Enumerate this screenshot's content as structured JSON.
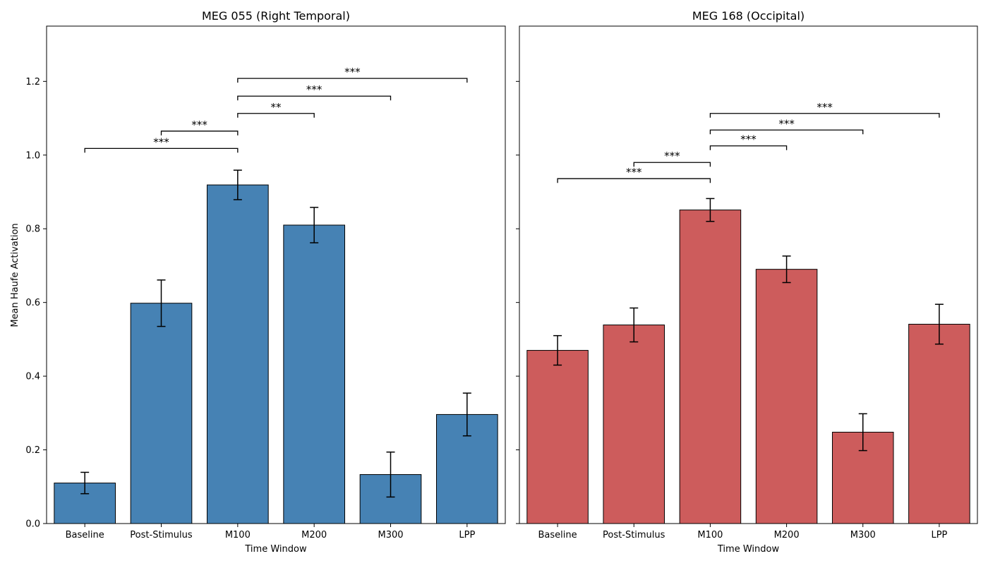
{
  "figure": {
    "ylabel": "Mean Haufe Activation"
  },
  "chart_data": [
    {
      "type": "bar",
      "title": "MEG 055 (Right Temporal)",
      "xlabel": "Time Window",
      "ylabel": "Mean Haufe Activation",
      "categories": [
        "Baseline",
        "Post-Stimulus",
        "M100",
        "M200",
        "M300",
        "LPP"
      ],
      "values": [
        0.11,
        0.598,
        0.919,
        0.81,
        0.133,
        0.296
      ],
      "errors": [
        0.029,
        0.063,
        0.04,
        0.048,
        0.061,
        0.058
      ],
      "bar_color": "#4682b4",
      "edge_color": "#000000",
      "ylim": [
        0,
        1.35
      ],
      "yticks": [
        0.0,
        0.2,
        0.4,
        0.6,
        0.8,
        1.0,
        1.2
      ],
      "ytick_labels": [
        "0.0",
        "0.2",
        "0.4",
        "0.6",
        "0.8",
        "1.0",
        "1.2"
      ],
      "significance": [
        {
          "from": "Baseline",
          "to": "M100",
          "y": 1.018,
          "label": "***"
        },
        {
          "from": "Post-Stimulus",
          "to": "M100",
          "y": 1.065,
          "label": "***"
        },
        {
          "from": "M100",
          "to": "M200",
          "y": 1.113,
          "label": "**"
        },
        {
          "from": "M100",
          "to": "M300",
          "y": 1.16,
          "label": "***"
        },
        {
          "from": "M100",
          "to": "LPP",
          "y": 1.208,
          "label": "***"
        }
      ]
    },
    {
      "type": "bar",
      "title": "MEG 168 (Occipital)",
      "xlabel": "Time Window",
      "ylabel": "",
      "categories": [
        "Baseline",
        "Post-Stimulus",
        "M100",
        "M200",
        "M300",
        "LPP"
      ],
      "values": [
        0.47,
        0.539,
        0.851,
        0.69,
        0.248,
        0.541
      ],
      "errors": [
        0.04,
        0.046,
        0.031,
        0.036,
        0.05,
        0.054
      ],
      "bar_color": "#cd5c5c",
      "edge_color": "#000000",
      "ylim": [
        0,
        1.35
      ],
      "yticks": [
        0.0,
        0.2,
        0.4,
        0.6,
        0.8,
        1.0,
        1.2
      ],
      "ytick_labels": [
        "",
        "",
        "",
        "",
        "",
        "",
        ""
      ],
      "significance": [
        {
          "from": "Baseline",
          "to": "M100",
          "y": 0.936,
          "label": "***"
        },
        {
          "from": "Post-Stimulus",
          "to": "M100",
          "y": 0.98,
          "label": "***"
        },
        {
          "from": "M100",
          "to": "M200",
          "y": 1.025,
          "label": "***"
        },
        {
          "from": "M100",
          "to": "M300",
          "y": 1.068,
          "label": "***"
        },
        {
          "from": "M100",
          "to": "LPP",
          "y": 1.113,
          "label": "***"
        }
      ]
    }
  ]
}
